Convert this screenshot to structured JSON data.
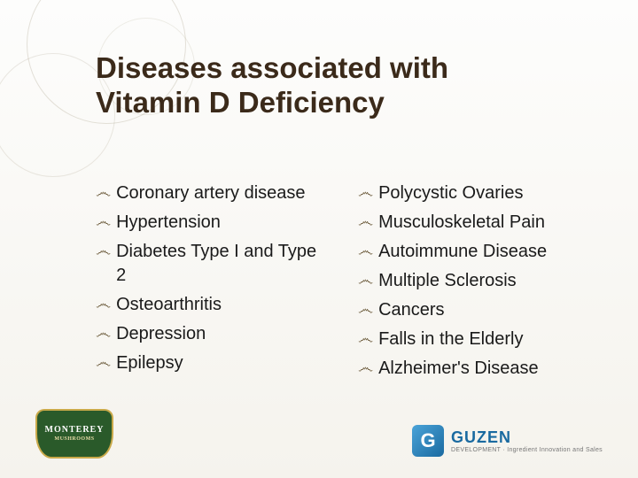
{
  "title_line1": "Diseases associated with",
  "title_line2": "Vitamin D Deficiency",
  "bullet_glyph": "෴",
  "left_column": [
    "Coronary artery disease",
    "Hypertension",
    "Diabetes Type I and Type 2",
    "Osteoarthritis",
    "Depression",
    "Epilepsy"
  ],
  "right_column": [
    "Polycystic Ovaries",
    "Musculoskeletal Pain",
    "Autoimmune Disease",
    "Multiple Sclerosis",
    "Cancers",
    "Falls in the Elderly",
    "Alzheimer's Disease"
  ],
  "logo_left": {
    "name": "MONTEREY",
    "sub": "MUSHROOMS"
  },
  "logo_right": {
    "initial": "G",
    "name": "GUZEN",
    "tagline": "DEVELOPMENT · Ingredient Innovation and Sales"
  },
  "colors": {
    "title": "#3b2a1a",
    "text": "#1a1a1a",
    "bullet": "#6b5a3a",
    "bg_top": "#fdfdfc",
    "bg_bottom": "#f5f3ed",
    "circle": "rgba(150,140,110,0.25)"
  }
}
